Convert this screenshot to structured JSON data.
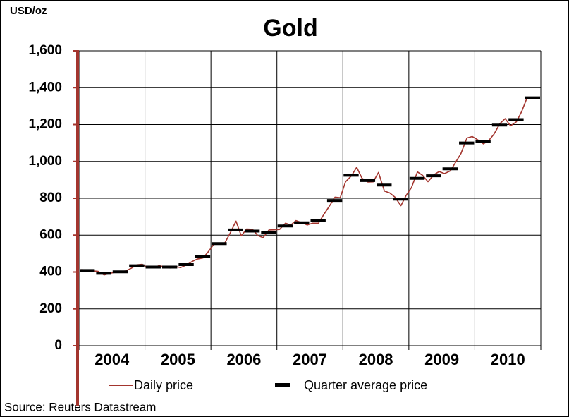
{
  "chart_data": {
    "type": "line",
    "title": "Gold",
    "y_unit": "USD/oz",
    "source": "Source: Reuters Datastream",
    "xlim": [
      2004,
      2011
    ],
    "xticks": [
      2004,
      2005,
      2006,
      2007,
      2008,
      2009,
      2010,
      2011
    ],
    "x_labels": [
      {
        "value": 2004.5,
        "label": "2004"
      },
      {
        "value": 2005.5,
        "label": "2005"
      },
      {
        "value": 2006.5,
        "label": "2006"
      },
      {
        "value": 2007.5,
        "label": "2007"
      },
      {
        "value": 2008.5,
        "label": "2008"
      },
      {
        "value": 2009.5,
        "label": "2009"
      },
      {
        "value": 2010.5,
        "label": "2010"
      }
    ],
    "ylim": [
      0,
      1600
    ],
    "yticks": [
      0,
      200,
      400,
      600,
      800,
      {
        "value": 1000,
        "label": "1,000"
      },
      {
        "value": 1200,
        "label": "1,200"
      },
      {
        "value": 1400,
        "label": "1,400"
      },
      {
        "value": 1600,
        "label": "1,600"
      }
    ],
    "grid": true,
    "series": [
      {
        "name": "Daily price",
        "color": "#a3352e",
        "kind": "line",
        "x": [
          2004.04,
          2004.13,
          2004.21,
          2004.29,
          2004.38,
          2004.46,
          2004.54,
          2004.63,
          2004.71,
          2004.79,
          2004.88,
          2004.96,
          2005.04,
          2005.13,
          2005.21,
          2005.29,
          2005.38,
          2005.46,
          2005.54,
          2005.63,
          2005.71,
          2005.79,
          2005.88,
          2005.96,
          2006.04,
          2006.13,
          2006.21,
          2006.29,
          2006.38,
          2006.46,
          2006.54,
          2006.63,
          2006.71,
          2006.79,
          2006.88,
          2006.96,
          2007.04,
          2007.13,
          2007.21,
          2007.29,
          2007.38,
          2007.46,
          2007.54,
          2007.63,
          2007.71,
          2007.79,
          2007.88,
          2007.96,
          2008.04,
          2008.13,
          2008.21,
          2008.29,
          2008.38,
          2008.46,
          2008.54,
          2008.63,
          2008.71,
          2008.79,
          2008.88,
          2008.96,
          2009.04,
          2009.13,
          2009.21,
          2009.29,
          2009.38,
          2009.46,
          2009.54,
          2009.63,
          2009.71,
          2009.79,
          2009.88,
          2009.96,
          2010.04,
          2010.13,
          2010.21,
          2010.29,
          2010.38,
          2010.46,
          2010.54,
          2010.63,
          2010.71,
          2010.79
        ],
        "values": [
          414,
          405,
          406,
          404,
          384,
          392,
          398,
          401,
          406,
          420,
          439,
          442,
          424,
          423,
          434,
          429,
          422,
          430,
          424,
          438,
          456,
          470,
          476,
          510,
          549,
          555,
          557,
          610,
          676,
          596,
          633,
          632,
          598,
          586,
          628,
          629,
          631,
          665,
          655,
          679,
          667,
          655,
          665,
          665,
          712,
          754,
          806,
          803,
          889,
          922,
          968,
          909,
          888,
          889,
          940,
          839,
          829,
          806,
          760,
          816,
          858,
          943,
          924,
          890,
          928,
          945,
          934,
          949,
          996,
          1043,
          1127,
          1135,
          1118,
          1095,
          1113,
          1148,
          1205,
          1232,
          1193,
          1215,
          1271,
          1343
        ]
      },
      {
        "name": "Quarter average price",
        "color": "#000000",
        "kind": "step",
        "x": [
          2004,
          2004.25,
          2004.5,
          2004.75,
          2005,
          2005.25,
          2005.5,
          2005.75,
          2006,
          2006.25,
          2006.5,
          2006.75,
          2007,
          2007.25,
          2007.5,
          2007.75,
          2008,
          2008.25,
          2008.5,
          2008.75,
          2009,
          2009.25,
          2009.5,
          2009.75,
          2010,
          2010.25,
          2010.5,
          2010.75
        ],
        "values": [
          408,
          393,
          401,
          434,
          427,
          427,
          440,
          485,
          554,
          628,
          622,
          614,
          650,
          667,
          680,
          788,
          925,
          896,
          872,
          795,
          908,
          922,
          960,
          1100,
          1109,
          1197,
          1227,
          1345
        ]
      }
    ]
  }
}
